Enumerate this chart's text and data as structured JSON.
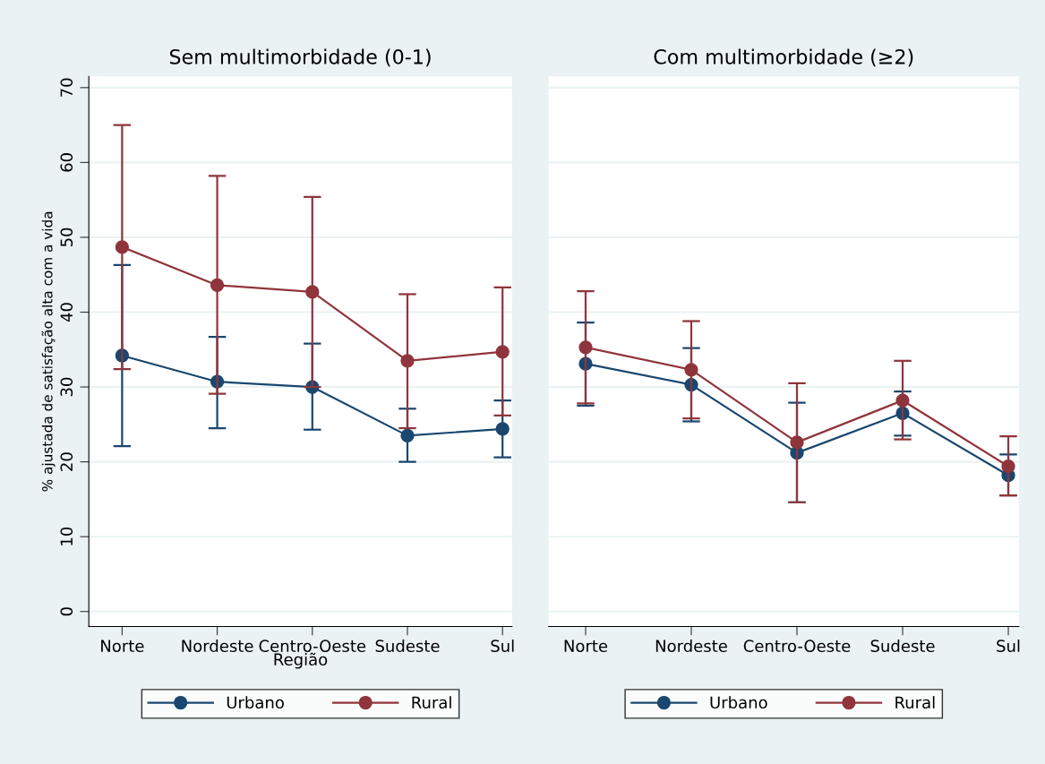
{
  "chart_data": [
    {
      "type": "line",
      "title": "Sem multimorbidade (0-1)",
      "xlabel": "Região",
      "ylabel": "% ajustada de satisfação alta com a vida",
      "categories": [
        "Norte",
        "Nordeste",
        "Centro-Oeste",
        "Sudeste",
        "Sul"
      ],
      "ylim": [
        -2,
        71.5
      ],
      "yticks": [
        0,
        10,
        20,
        30,
        40,
        50,
        60,
        70
      ],
      "grid": "y",
      "legend": "bottom",
      "marker": "circle",
      "line_style": "solid",
      "series": [
        {
          "name": "Urbano",
          "color": "#1a476f",
          "values": [
            34.2,
            30.7,
            30.0,
            23.5,
            24.4
          ],
          "errors": [
            [
              22.1,
              46.3
            ],
            [
              24.5,
              36.7
            ],
            [
              24.3,
              35.8
            ],
            [
              20.0,
              27.1
            ],
            [
              20.6,
              28.2
            ]
          ]
        },
        {
          "name": "Rural",
          "color": "#90353b",
          "values": [
            48.7,
            43.6,
            42.7,
            33.5,
            34.7
          ],
          "errors": [
            [
              32.4,
              65.0
            ],
            [
              29.1,
              58.2
            ],
            [
              30.0,
              55.4
            ],
            [
              24.5,
              42.4
            ],
            [
              26.2,
              43.3
            ]
          ]
        }
      ]
    },
    {
      "type": "line",
      "title": "Com multimorbidade (≥2)",
      "categories": [
        "Norte",
        "Nordeste",
        "Centro-Oeste",
        "Sudeste",
        "Sul"
      ],
      "ylim": [
        -2,
        71.5
      ],
      "yticks": [
        0,
        10,
        20,
        30,
        40,
        50,
        60,
        70
      ],
      "tick_labels": "x",
      "grid": "y",
      "legend": "bottom",
      "marker": "circle",
      "line_style": "solid",
      "series": [
        {
          "name": "Urbano",
          "color": "#1a476f",
          "values": [
            33.1,
            30.3,
            21.2,
            26.5,
            18.2
          ],
          "errors": [
            [
              27.5,
              38.6
            ],
            [
              25.4,
              35.2
            ],
            [
              14.6,
              27.9
            ],
            [
              23.5,
              29.4
            ],
            [
              15.5,
              21.0
            ]
          ]
        },
        {
          "name": "Rural",
          "color": "#90353b",
          "values": [
            35.3,
            32.3,
            22.6,
            28.2,
            19.4
          ],
          "errors": [
            [
              27.8,
              42.8
            ],
            [
              25.8,
              38.8
            ],
            [
              14.6,
              30.5
            ],
            [
              23.0,
              33.5
            ],
            [
              15.5,
              23.4
            ]
          ]
        }
      ]
    }
  ]
}
